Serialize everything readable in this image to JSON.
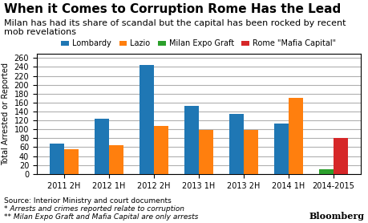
{
  "chart_data": {
    "type": "bar",
    "title": "When it Comes to Corruption Rome Has the Lead",
    "subtitle": "Milan has had its share of scandal but the capital has been rocked by recent mob revelations",
    "y_label": "Total Arrested or Reported",
    "annotations": [
      "Source: Interior Ministry and court documents",
      "* Arrests and crimes reported relate to corruption",
      "** Milan Expo Graft and Mafia Capital are only arrests",
      "Bloomberg"
    ],
    "categories": [
      "2011 2H",
      "2012 1H",
      "2012 2H",
      "2013 1H",
      "2013 2H",
      "2014 1H",
      "2014-2015"
    ],
    "series": [
      {
        "name": "Lombardy",
        "values": [
          68,
          123,
          244,
          152,
          134,
          113,
          null
        ]
      },
      {
        "name": "Lazio",
        "values": [
          55,
          65,
          108,
          99,
          98,
          170,
          null
        ]
      },
      {
        "name": "Milan Expo Graft",
        "values": [
          null,
          null,
          null,
          null,
          null,
          null,
          10
        ]
      },
      {
        "name": "Rome \"Mafia Capital\"",
        "values": [
          null,
          null,
          null,
          null,
          null,
          null,
          80
        ]
      }
    ],
    "ylim": [
      0,
      270
    ],
    "yticks": [
      0,
      20,
      40,
      60,
      80,
      100,
      120,
      140,
      160,
      180,
      200,
      220,
      240,
      260
    ],
    "grid": true,
    "legend": "lower center"
  }
}
